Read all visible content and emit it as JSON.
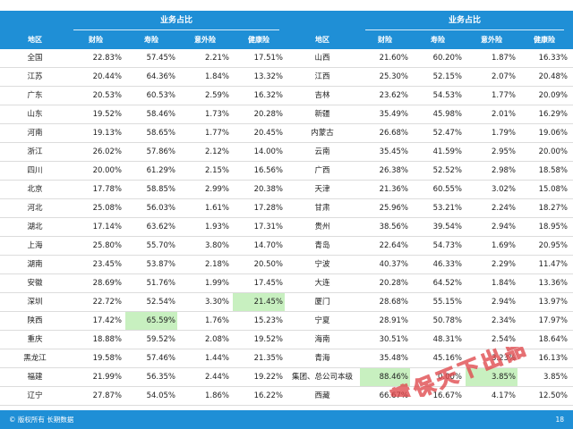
{
  "header": {
    "group_label_left": "业务占比",
    "group_label_right": "业务占比",
    "columns": [
      "地区",
      "财险",
      "寿险",
      "意外险",
      "健康险",
      "地区",
      "财险",
      "寿险",
      "意外险",
      "健康险"
    ]
  },
  "rows": [
    [
      "全国",
      "22.83%",
      "57.45%",
      "2.21%",
      "17.51%",
      "山西",
      "21.60%",
      "60.20%",
      "1.87%",
      "16.33%"
    ],
    [
      "江苏",
      "20.44%",
      "64.36%",
      "1.84%",
      "13.32%",
      "江西",
      "25.30%",
      "52.15%",
      "2.07%",
      "20.48%"
    ],
    [
      "广东",
      "20.53%",
      "60.53%",
      "2.59%",
      "16.32%",
      "吉林",
      "23.62%",
      "54.53%",
      "1.77%",
      "20.09%"
    ],
    [
      "山东",
      "19.52%",
      "58.46%",
      "1.73%",
      "20.28%",
      "新疆",
      "35.49%",
      "45.98%",
      "2.01%",
      "16.29%"
    ],
    [
      "河南",
      "19.13%",
      "58.65%",
      "1.77%",
      "20.45%",
      "内蒙古",
      "26.68%",
      "52.47%",
      "1.79%",
      "19.06%"
    ],
    [
      "浙江",
      "26.02%",
      "57.86%",
      "2.12%",
      "14.00%",
      "云南",
      "35.45%",
      "41.59%",
      "2.95%",
      "20.00%"
    ],
    [
      "四川",
      "20.00%",
      "61.29%",
      "2.15%",
      "16.56%",
      "广西",
      "26.38%",
      "52.52%",
      "2.98%",
      "18.58%"
    ],
    [
      "北京",
      "17.78%",
      "58.85%",
      "2.99%",
      "20.38%",
      "天津",
      "21.36%",
      "60.55%",
      "3.02%",
      "15.08%"
    ],
    [
      "河北",
      "25.08%",
      "56.03%",
      "1.61%",
      "17.28%",
      "甘肃",
      "25.96%",
      "53.21%",
      "2.24%",
      "18.27%"
    ],
    [
      "湖北",
      "17.14%",
      "63.62%",
      "1.93%",
      "17.31%",
      "贵州",
      "38.56%",
      "39.54%",
      "2.94%",
      "18.95%"
    ],
    [
      "上海",
      "25.80%",
      "55.70%",
      "3.80%",
      "14.70%",
      "青岛",
      "22.64%",
      "54.73%",
      "1.69%",
      "20.95%"
    ],
    [
      "湖南",
      "23.45%",
      "53.87%",
      "2.18%",
      "20.50%",
      "宁波",
      "40.37%",
      "46.33%",
      "2.29%",
      "11.47%"
    ],
    [
      "安徽",
      "28.69%",
      "51.76%",
      "1.99%",
      "17.45%",
      "大连",
      "20.28%",
      "64.52%",
      "1.84%",
      "13.36%"
    ],
    [
      "深圳",
      "22.72%",
      "52.54%",
      "3.30%",
      "21.45%",
      "厦门",
      "28.68%",
      "55.15%",
      "2.94%",
      "13.97%"
    ],
    [
      "陕西",
      "17.42%",
      "65.59%",
      "1.76%",
      "15.23%",
      "宁夏",
      "28.91%",
      "50.78%",
      "2.34%",
      "17.97%"
    ],
    [
      "重庆",
      "18.88%",
      "59.52%",
      "2.08%",
      "19.52%",
      "海南",
      "30.51%",
      "48.31%",
      "2.54%",
      "18.64%"
    ],
    [
      "黑龙江",
      "19.58%",
      "57.46%",
      "1.44%",
      "21.35%",
      "青海",
      "35.48%",
      "45.16%",
      "3.23%",
      "16.13%"
    ],
    [
      "福建",
      "21.99%",
      "56.35%",
      "2.44%",
      "19.22%",
      "集团、总公司本级",
      "88.46%",
      "0.00%",
      "3.85%",
      "3.85%"
    ],
    [
      "辽宁",
      "27.87%",
      "54.05%",
      "1.86%",
      "16.22%",
      "西藏",
      "66.67%",
      "16.67%",
      "4.17%",
      "12.50%"
    ]
  ],
  "highlights": [
    [
      13,
      4
    ],
    [
      14,
      2
    ],
    [
      17,
      6
    ],
    [
      17,
      8
    ]
  ],
  "colors": {
    "header_bg": "#1f8fd6",
    "highlight_bg": "#c8f0c0",
    "stamp": "#e0484c"
  },
  "footer": {
    "copyright": "© 版权所有 长期数据",
    "page_number": "18"
  },
  "watermark": {
    "text": "慧保天下出品"
  }
}
